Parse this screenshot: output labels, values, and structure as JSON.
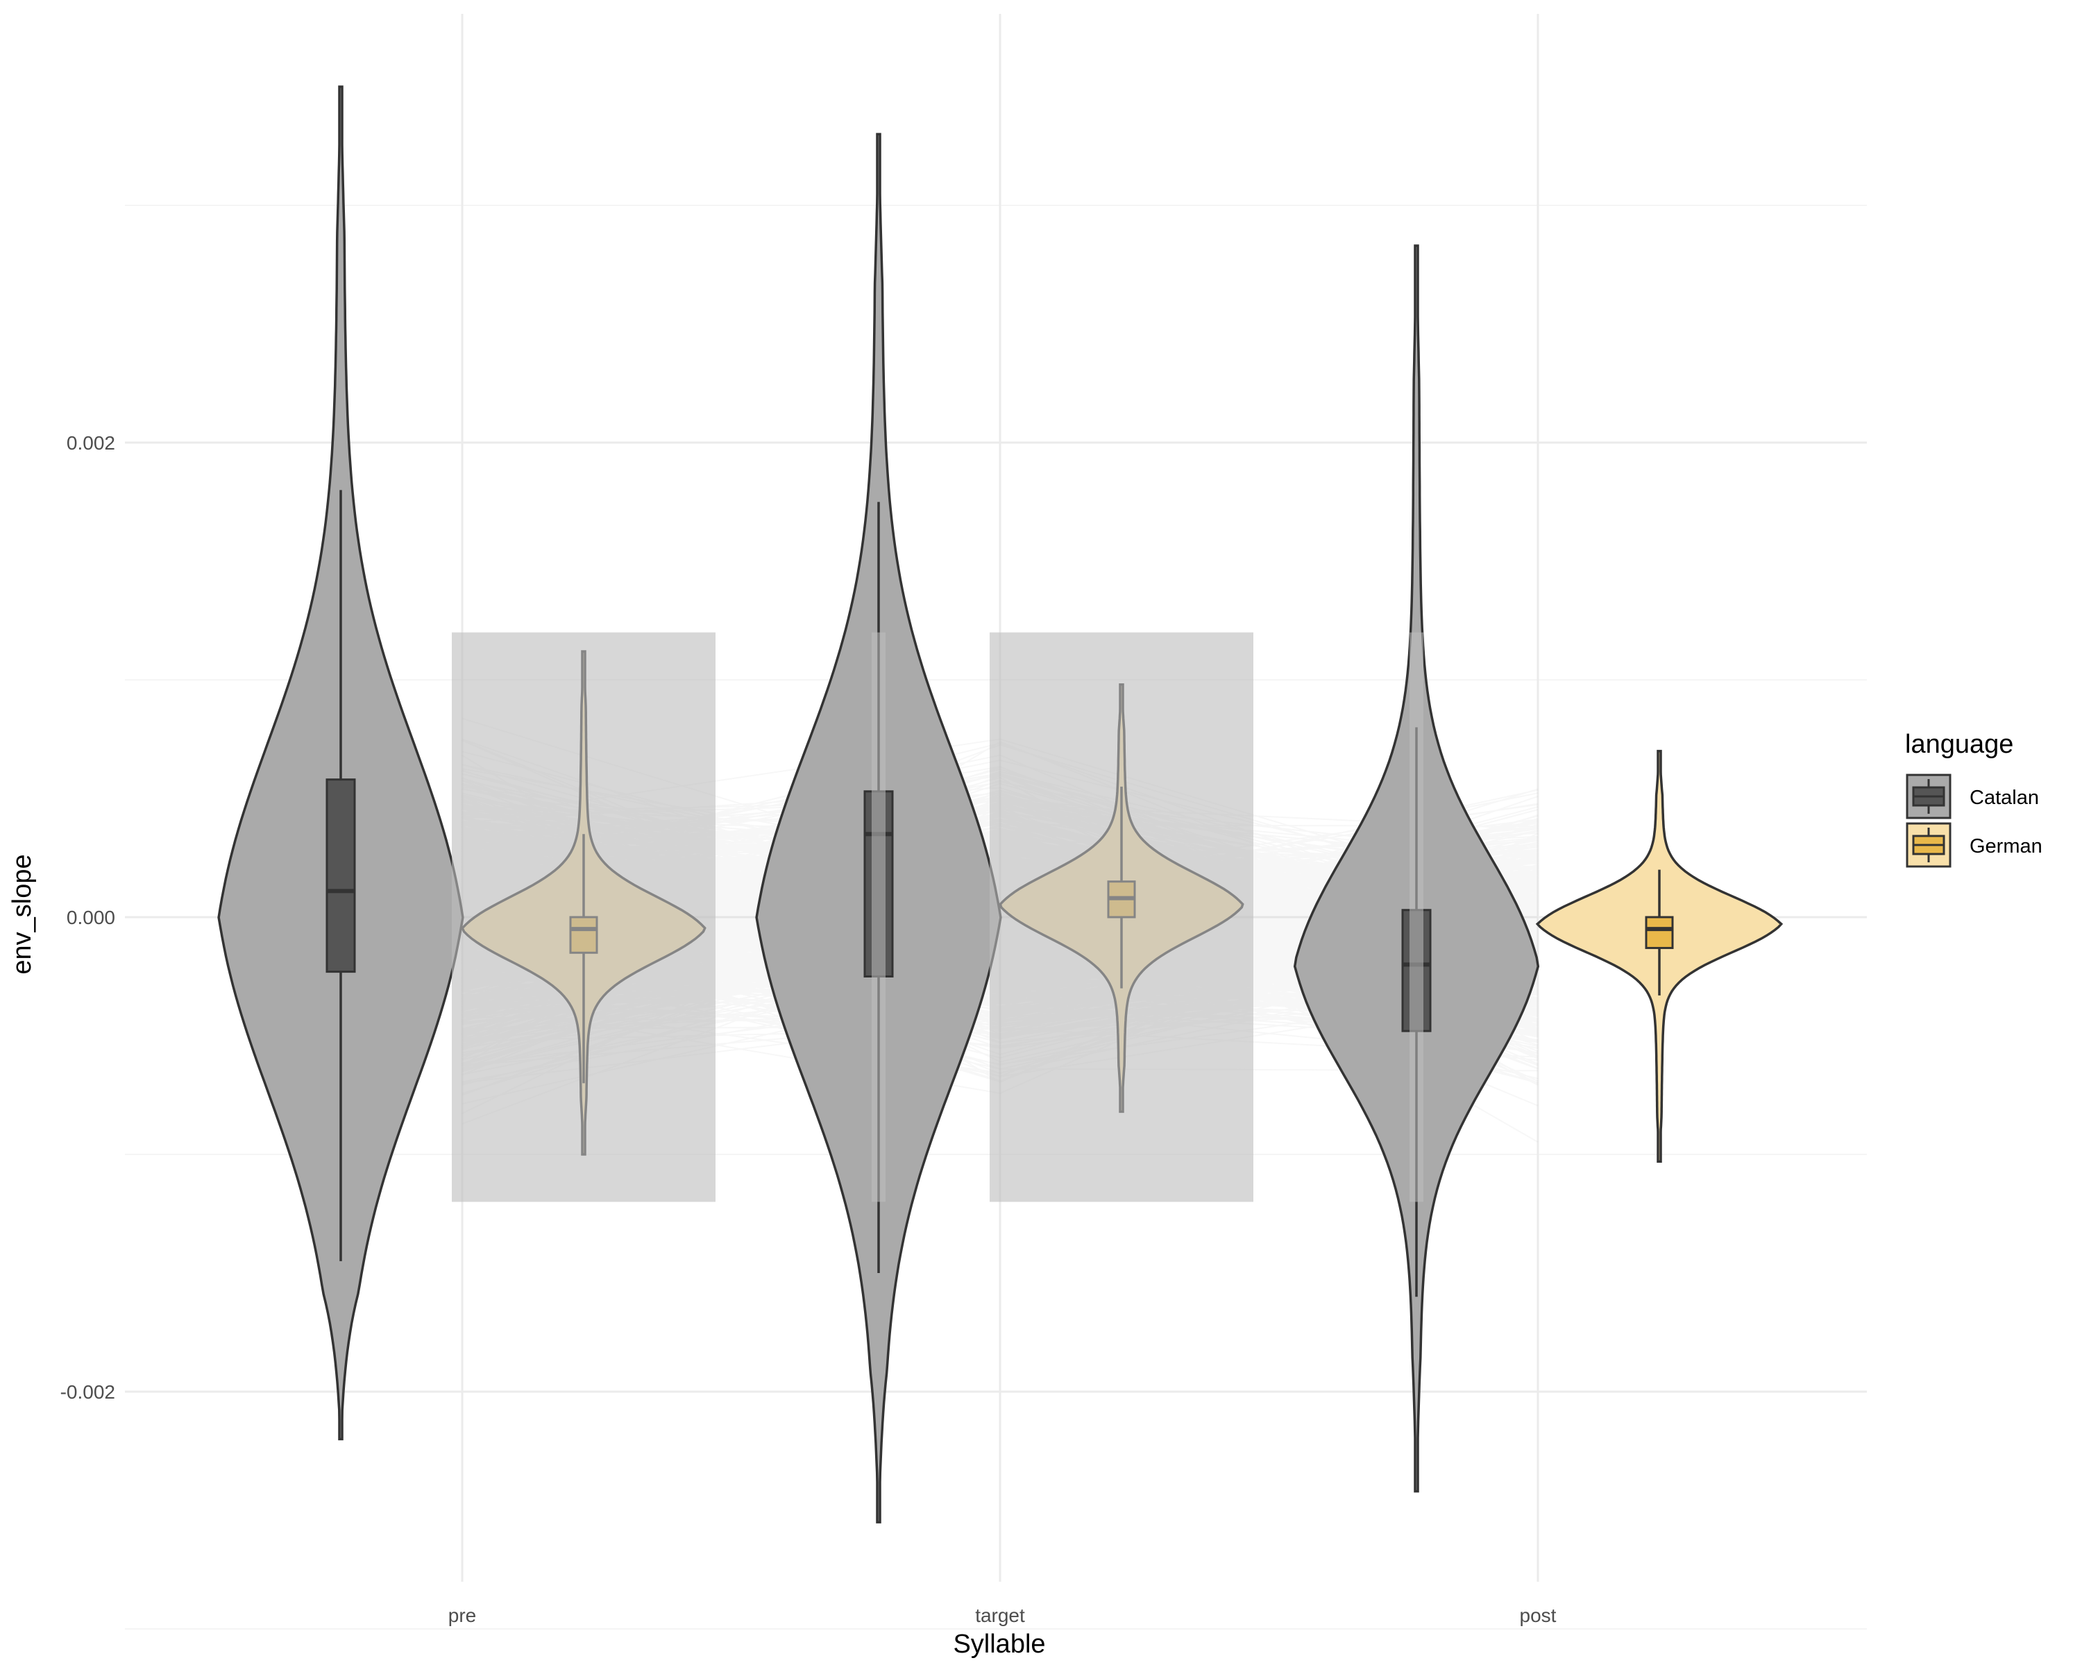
{
  "chart_data": {
    "type": "violin",
    "xlabel": "Syllable",
    "ylabel": "env_slope",
    "categories": [
      "pre",
      "target",
      "post"
    ],
    "y_ticks": [
      -0.002,
      0.0,
      0.002
    ],
    "y_tick_labels": [
      "-0.002",
      "0.000",
      "0.002"
    ],
    "ylim": [
      -0.00275,
      0.00365
    ],
    "grid": true,
    "legend": {
      "title": "language",
      "position": "right",
      "entries": [
        {
          "label": "Catalan",
          "fill": "#aaaaaa",
          "box": "#555555"
        },
        {
          "label": "German",
          "fill": "#f8e0aa",
          "box": "#e9b84a"
        }
      ]
    },
    "colors": {
      "catalan_violin": "#aaaaaa",
      "catalan_box": "#555555",
      "german_violin": "#f8e0aa",
      "german_box": "#e9b84a",
      "lines": "#bdbdbd",
      "outline": "#333333"
    },
    "series": [
      {
        "name": "Catalan",
        "groups": [
          {
            "category": "pre",
            "min": -0.0022,
            "max": 0.0035,
            "q1": -0.00023,
            "median": 0.00011,
            "q3": 0.00058,
            "whisker_low": -0.00145,
            "whisker_high": 0.0018,
            "mode": 0.0
          },
          {
            "category": "target",
            "min": -0.00255,
            "max": 0.0033,
            "q1": -0.00025,
            "median": 0.00035,
            "q3": 0.00053,
            "whisker_low": -0.0015,
            "whisker_high": 0.00175,
            "mode": 0.0
          },
          {
            "category": "post",
            "min": -0.00242,
            "max": 0.00283,
            "q1": -0.00048,
            "median": -0.0002,
            "q3": 3e-05,
            "whisker_low": -0.0016,
            "whisker_high": 0.0008,
            "mode": -0.0002
          }
        ]
      },
      {
        "name": "German",
        "groups": [
          {
            "category": "pre",
            "min": -0.001,
            "max": 0.00112,
            "q1": -0.00015,
            "median": -5e-05,
            "q3": 0.0,
            "whisker_low": -0.0007,
            "whisker_high": 0.00035,
            "mode": -5e-05
          },
          {
            "category": "target",
            "min": -0.00082,
            "max": 0.00098,
            "q1": 0.0,
            "median": 8e-05,
            "q3": 0.00015,
            "whisker_low": -0.0003,
            "whisker_high": 0.00055,
            "mode": 5e-05
          },
          {
            "category": "post",
            "min": -0.00103,
            "max": 0.0007,
            "q1": -0.00013,
            "median": -5e-05,
            "q3": 0.0,
            "whisker_low": -0.00033,
            "whisker_high": 0.0002,
            "mode": -3e-05
          }
        ]
      }
    ]
  }
}
